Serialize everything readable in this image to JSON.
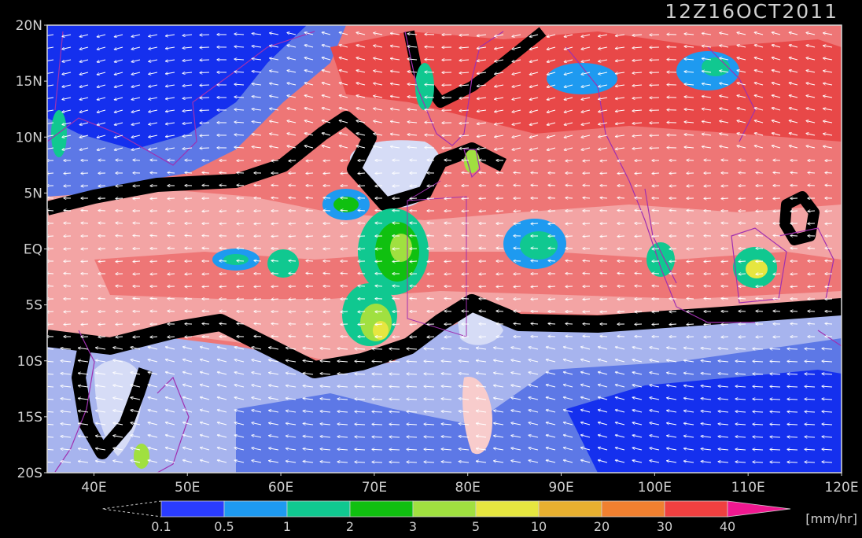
{
  "title": "12Z16OCT2011",
  "map": {
    "lat_labels": [
      "20N",
      "15N",
      "10N",
      "5N",
      "EQ",
      "5S",
      "10S",
      "15S",
      "20S"
    ],
    "lon_labels": [
      "40E",
      "50E",
      "60E",
      "70E",
      "80E",
      "90E",
      "100E",
      "110E",
      "120E"
    ],
    "lon_range": [
      35,
      120
    ],
    "lat_range": [
      -20,
      20
    ]
  },
  "colorbar": {
    "ticks": [
      "0.1",
      "0.5",
      "1",
      "2",
      "3",
      "5",
      "10",
      "20",
      "30",
      "40"
    ],
    "unit": "[mm/hr]",
    "colors": [
      "#2a3cff",
      "#1e9af0",
      "#10c890",
      "#10c010",
      "#a0e040",
      "#e6e640",
      "#e8b030",
      "#f08030",
      "#f04040",
      "#f01890"
    ]
  },
  "field_colors": {
    "deep_blue": "#1530ee",
    "mid_blue": "#5d78e6",
    "light_blue": "#a7b4ee",
    "pale_blue": "#d6dcf6",
    "pale_red": "#f8cccc",
    "light_red": "#f3a4a4",
    "mid_red": "#ee7676",
    "deep_red": "#e84848",
    "coast": "#a030b0"
  }
}
